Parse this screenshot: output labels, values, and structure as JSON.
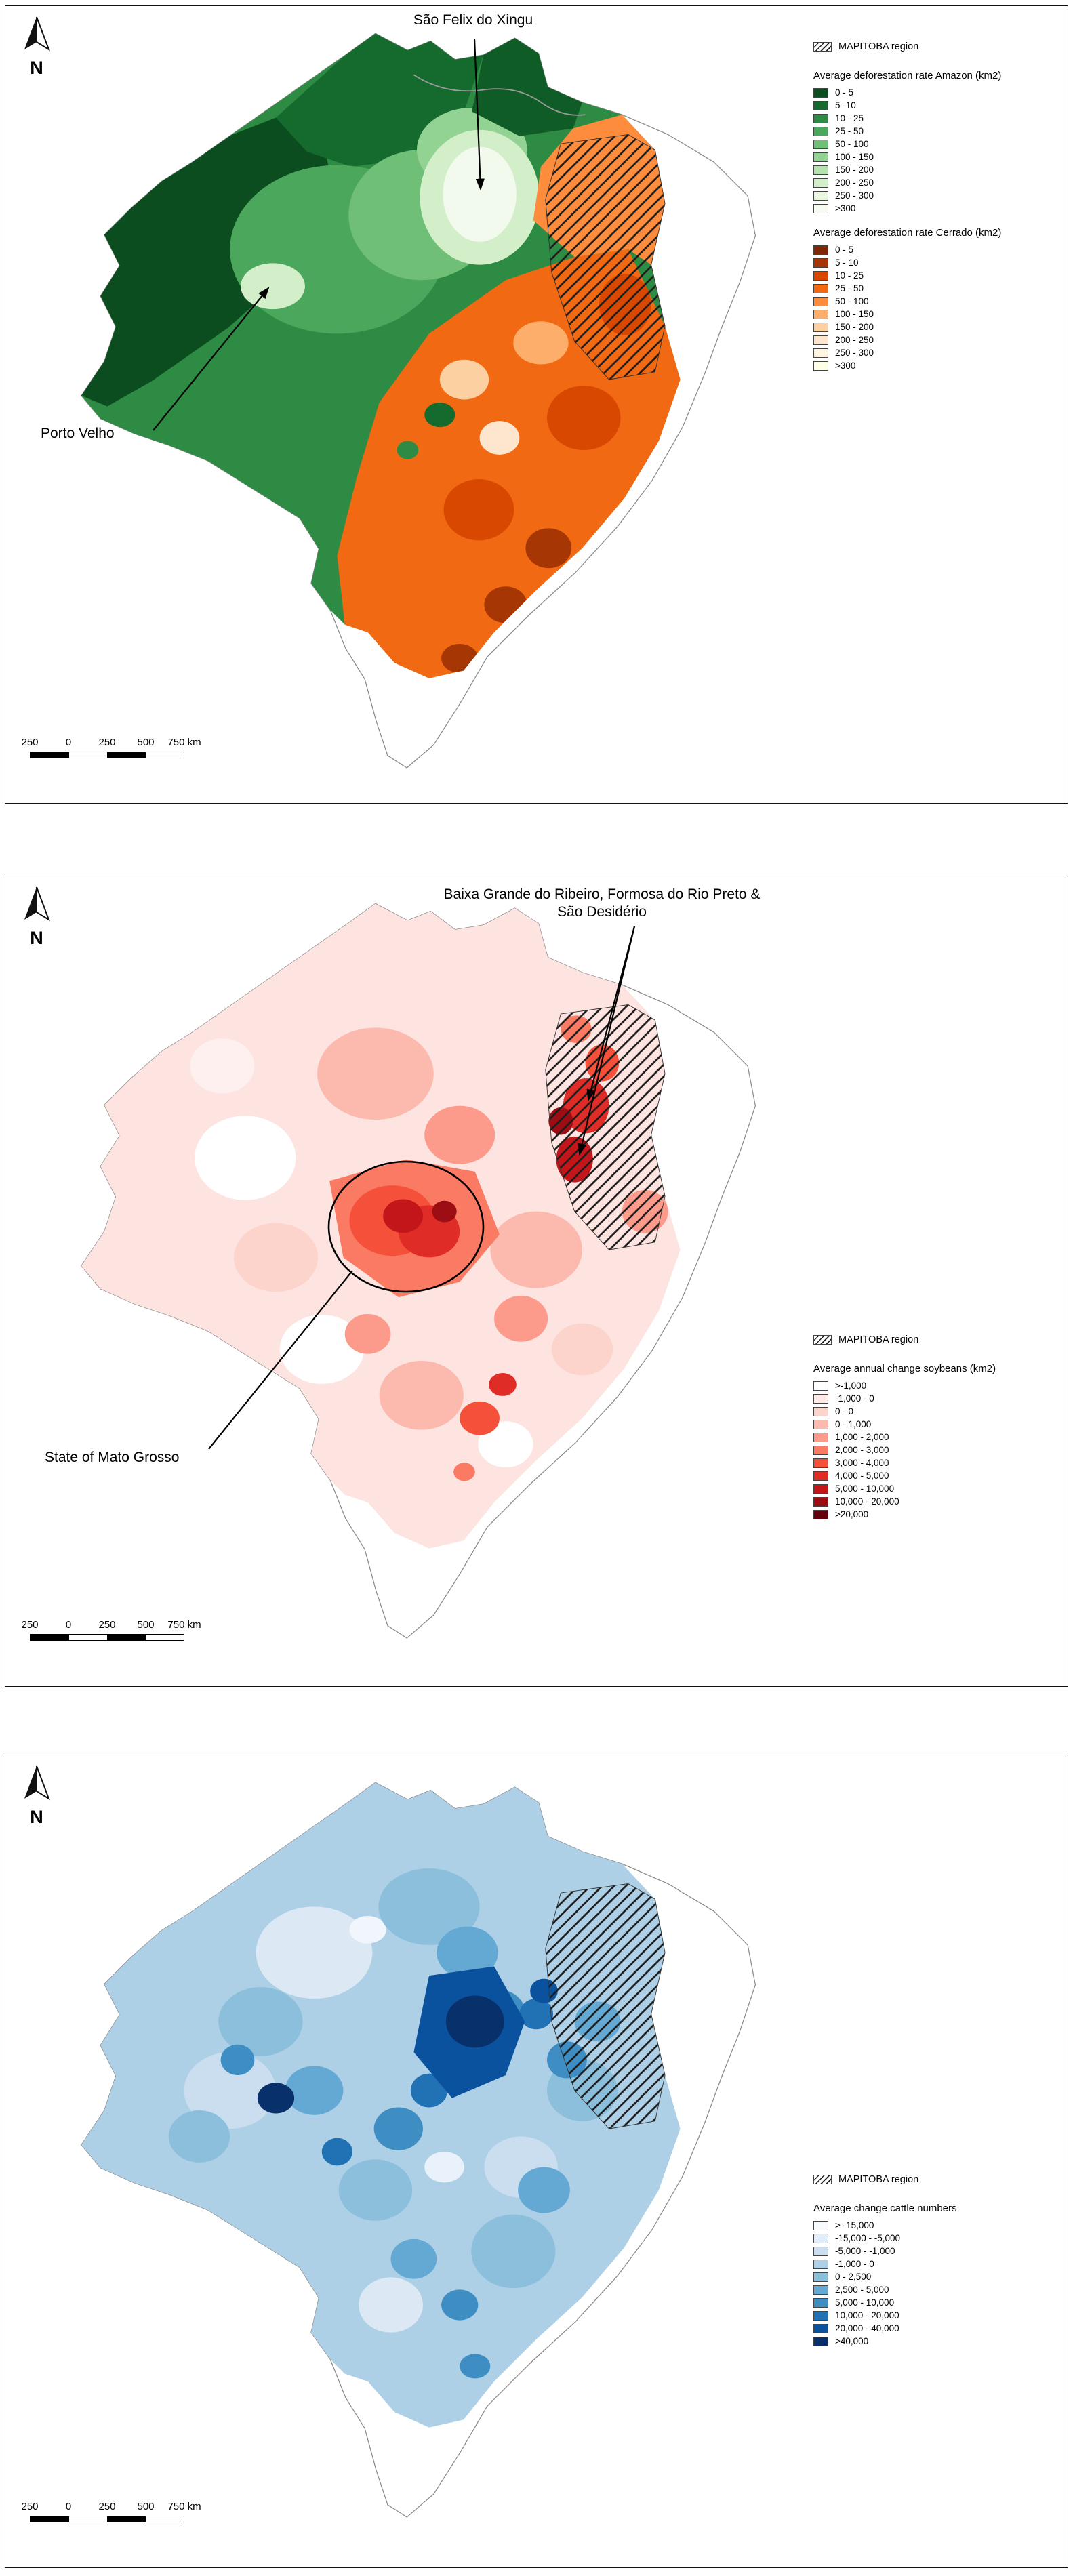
{
  "panels": [
    {
      "id": "deforestation-map",
      "north_label": "N",
      "annotations": [
        {
          "text": "São Felix do Xingu"
        },
        {
          "text": "Porto Velho"
        }
      ],
      "legend": {
        "mapitoba_label": "MAPITOBA region",
        "sections": [
          {
            "title": "Average deforestation rate Amazon (km2)",
            "items": [
              {
                "label": "0 - 5",
                "color": "#0b4d1f"
              },
              {
                "label": "5 -10",
                "color": "#156a2d"
              },
              {
                "label": "10 - 25",
                "color": "#2e8b43"
              },
              {
                "label": "25 - 50",
                "color": "#4ba75c"
              },
              {
                "label": "50 - 100",
                "color": "#6fbf77"
              },
              {
                "label": "100 - 150",
                "color": "#92d292"
              },
              {
                "label": "150 - 200",
                "color": "#b5e2ae"
              },
              {
                "label": "200 - 250",
                "color": "#d3efc9"
              },
              {
                "label": "250 - 300",
                "color": "#eaf8e2"
              },
              {
                "label": ">300",
                "color": "#f7fcf3"
              }
            ]
          },
          {
            "title": "Average deforestation rate Cerrado (km2)",
            "items": [
              {
                "label": "0 - 5",
                "color": "#7f2704"
              },
              {
                "label": "5 - 10",
                "color": "#a63603"
              },
              {
                "label": "10 - 25",
                "color": "#d94801"
              },
              {
                "label": "25 - 50",
                "color": "#f16913"
              },
              {
                "label": "50 - 100",
                "color": "#fd8d3c"
              },
              {
                "label": "100 - 150",
                "color": "#fdae6b"
              },
              {
                "label": "150 - 200",
                "color": "#fdd0a2"
              },
              {
                "label": "200 - 250",
                "color": "#fee6ce"
              },
              {
                "label": "250 - 300",
                "color": "#fff5e1"
              },
              {
                "label": ">300",
                "color": "#ffffe5"
              }
            ]
          }
        ]
      },
      "scalebar": {
        "labels": [
          {
            "t": "250"
          },
          {
            "t": "0"
          },
          {
            "t": "250"
          },
          {
            "t": "500"
          },
          {
            "t": "750 km"
          }
        ]
      }
    },
    {
      "id": "soybean-change-map",
      "north_label": "N",
      "annotations": [
        {
          "text": "Baixa Grande do Ribeiro, Formosa do Rio Preto & São Desidério"
        },
        {
          "text": "State of Mato Grosso"
        }
      ],
      "legend": {
        "mapitoba_label": "MAPITOBA region",
        "sections": [
          {
            "title": "Average annual change soybeans (km2)",
            "items": [
              {
                "label": ">-1,000",
                "color": "#ffffff"
              },
              {
                "label": "-1,000 - 0",
                "color": "#fee9e6"
              },
              {
                "label": "0 - 0",
                "color": "#fdd4cc"
              },
              {
                "label": "0 - 1,000",
                "color": "#fcb9ad"
              },
              {
                "label": "1,000 - 2,000",
                "color": "#fc9b8b"
              },
              {
                "label": "2,000 - 3,000",
                "color": "#fb7a63"
              },
              {
                "label": "3,000 - 4,000",
                "color": "#f4503a"
              },
              {
                "label": "4,000 - 5,000",
                "color": "#e02c26"
              },
              {
                "label": "5,000 - 10,000",
                "color": "#c3161b"
              },
              {
                "label": "10,000 - 20,000",
                "color": "#9c0d14"
              },
              {
                "label": ">20,000",
                "color": "#67000d"
              }
            ]
          }
        ]
      },
      "scalebar": {
        "labels": [
          {
            "t": "250"
          },
          {
            "t": "0"
          },
          {
            "t": "250"
          },
          {
            "t": "500"
          },
          {
            "t": "750 km"
          }
        ]
      }
    },
    {
      "id": "cattle-change-map",
      "north_label": "N",
      "annotations": [],
      "legend": {
        "mapitoba_label": "MAPITOBA region",
        "sections": [
          {
            "title": "Average change cattle numbers",
            "items": [
              {
                "label": "> -15,000",
                "color": "#f7fbff"
              },
              {
                "label": "-15,000 - -5,000",
                "color": "#e1edf8"
              },
              {
                "label": "-5,000 - -1,000",
                "color": "#cadef0"
              },
              {
                "label": "-1,000 - 0",
                "color": "#add0e6"
              },
              {
                "label": "0 - 2,500",
                "color": "#8bbfdc"
              },
              {
                "label": "2,500 - 5,000",
                "color": "#64a9d3"
              },
              {
                "label": "5,000 - 10,000",
                "color": "#3e8ec4"
              },
              {
                "label": "10,000 - 20,000",
                "color": "#2171b5"
              },
              {
                "label": "20,000 - 40,000",
                "color": "#0b529e"
              },
              {
                "label": ">40,000",
                "color": "#08306b"
              }
            ]
          }
        ]
      },
      "scalebar": {
        "labels": [
          {
            "t": "250"
          },
          {
            "t": "0"
          },
          {
            "t": "250"
          },
          {
            "t": "500"
          },
          {
            "t": "750 km"
          }
        ]
      }
    }
  ]
}
